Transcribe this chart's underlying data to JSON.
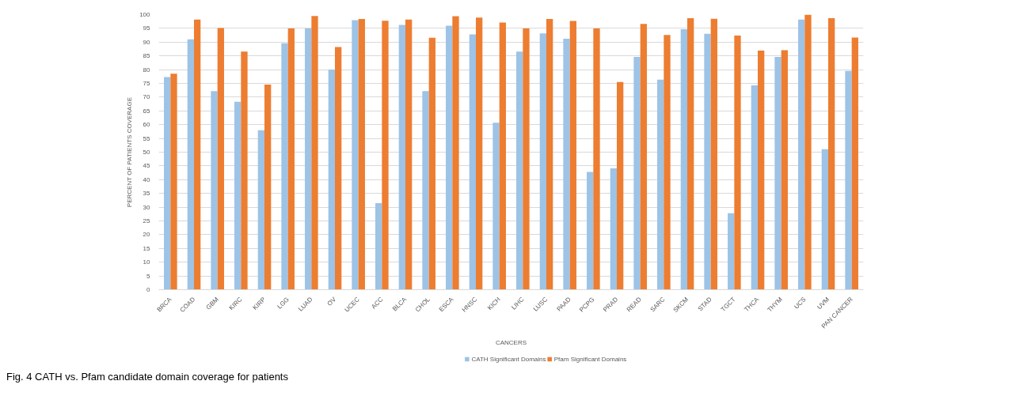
{
  "chart_data": {
    "type": "bar",
    "xlabel": "CANCERS",
    "ylabel": "PERCENT OF PATIENTS COVERAGE",
    "categories": [
      "BRCA",
      "COAD",
      "GBM",
      "KIRC",
      "KIRP",
      "LGG",
      "LUAD",
      "OV",
      "UCEC",
      "ACC",
      "BLCA",
      "CHOL",
      "ESCA",
      "HNSC",
      "KICH",
      "LIHC",
      "LUSC",
      "PAAD",
      "PCPG",
      "PRAD",
      "READ",
      "SARC",
      "SKCM",
      "STAD",
      "TGCT",
      "THCA",
      "THYM",
      "UCS",
      "UVM",
      "PAN CANCER"
    ],
    "series": [
      {
        "name": "CATH Significant Domains",
        "color": "#9dc3e6",
        "values": [
          77.3,
          91,
          72.2,
          68.3,
          58,
          89.6,
          95,
          80,
          98,
          31.5,
          96.3,
          72.2,
          96,
          92.8,
          60.7,
          86.6,
          93.2,
          91.2,
          42.8,
          44.1,
          84.6,
          76.4,
          94.7,
          93,
          27.8,
          74.3,
          84.6,
          98.2,
          51.1,
          79.5
        ]
      },
      {
        "name": "Pfam Significant Domains",
        "color": "#ed7d31",
        "values": [
          78.5,
          98.2,
          95.1,
          86.6,
          74.6,
          95,
          99.5,
          88.2,
          98.4,
          97.8,
          98.2,
          91.6,
          99.4,
          98.9,
          97.1,
          95,
          98.4,
          97.7,
          95,
          75.5,
          96.6,
          92.6,
          98.7,
          98.5,
          92.4,
          86.9,
          87.1,
          100,
          98.7,
          91.7
        ]
      }
    ],
    "ylim": [
      0,
      100
    ],
    "yticks": [
      0,
      5,
      10,
      15,
      20,
      25,
      30,
      35,
      40,
      45,
      50,
      55,
      60,
      65,
      70,
      75,
      80,
      85,
      90,
      95,
      100
    ],
    "grid": "y",
    "legend": "bottom",
    "annotations": [
      "Fig. 4 CATH vs. Pfam candidate domain coverage for patients"
    ]
  }
}
